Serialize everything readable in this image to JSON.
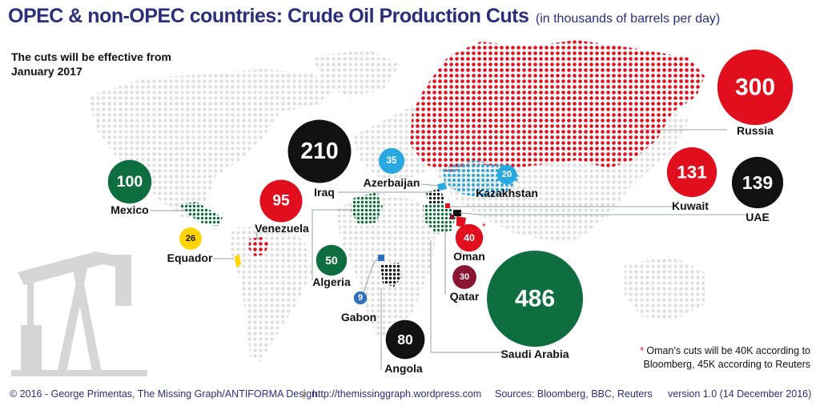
{
  "title": "OPEC & non-OPEC countries: Crude Oil Production Cuts",
  "subtitle": "(in thousands of barrels per day)",
  "note": "The cuts will be effective from January 2017",
  "footnote": {
    "star": "*",
    "text": "Oman's cuts will be 40K according to Bloomberg, 45K according to Reuters"
  },
  "footer": {
    "copyright": "© 2016 - George Primentas, The Missing Graph/ANTIFORMA Design",
    "separator": "|",
    "url": "http://themissinggraph.wordpress.com",
    "sources": "Sources: Bloomberg, BBC, Reuters",
    "version": "version 1.0 (14 December 2016)"
  },
  "colors": {
    "title": "#2b2f7a",
    "red": "#e10e1d",
    "black": "#111111",
    "green": "#0f6e40",
    "lightblue": "#29a9e0",
    "yellow": "#ffd400",
    "maroon": "#8a1533",
    "blue": "#2f6fba",
    "map": "#e0e0e0",
    "pump": "#d6d6d6"
  },
  "chart_data": {
    "type": "bubble",
    "unit": "thousands of barrels per day",
    "categories": [
      "Saudi Arabia",
      "Russia",
      "Iraq",
      "UAE",
      "Kuwait",
      "Mexico",
      "Venezuela",
      "Angola",
      "Algeria",
      "Oman",
      "Azerbaijan",
      "Qatar",
      "Equador",
      "Kazakhstan",
      "Gabon"
    ],
    "values": [
      486,
      300,
      210,
      139,
      131,
      100,
      95,
      80,
      50,
      40,
      35,
      30,
      26,
      20,
      9
    ],
    "labels": [
      "486",
      "300",
      "210",
      "139",
      "131",
      "100",
      "95",
      "80",
      "50",
      "40",
      "35",
      "30",
      "26",
      "20",
      "9"
    ],
    "annotations": [
      "Oman *"
    ],
    "legend": "none"
  }
}
